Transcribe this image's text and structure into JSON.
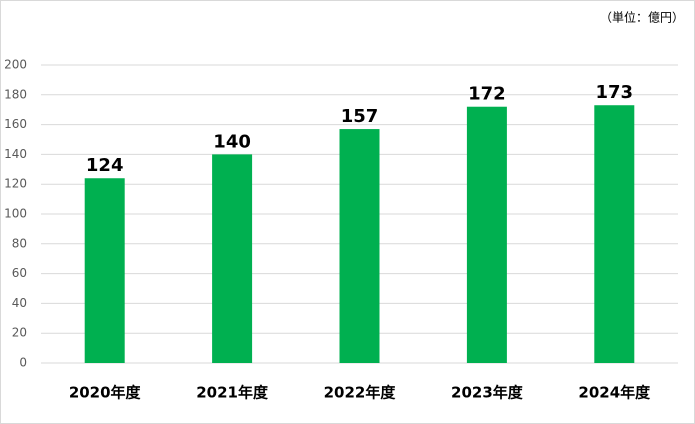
{
  "chart_data": {
    "type": "bar",
    "unit_label": "（単位：億円）",
    "categories": [
      "2020年度",
      "2021年度",
      "2022年度",
      "2023年度",
      "2024年度"
    ],
    "values": [
      124,
      140,
      157,
      172,
      173
    ],
    "color": "#00b050",
    "ylim": [
      0,
      200
    ],
    "yticks": [
      0,
      20,
      40,
      60,
      80,
      100,
      120,
      140,
      160,
      180,
      200
    ],
    "grid": true,
    "data_labels": true
  }
}
